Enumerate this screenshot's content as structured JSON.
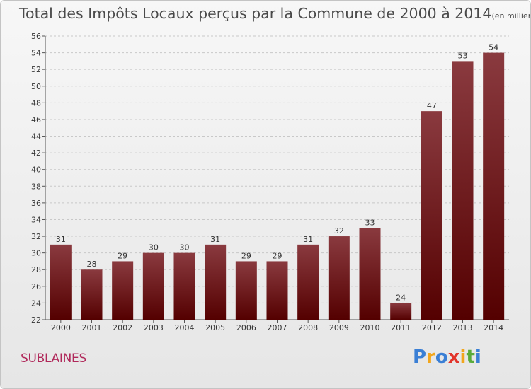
{
  "title": "Total des Impôts Locaux perçus par la Commune de 2000 à 2014",
  "unit": "(en milliers d'€)",
  "commune": "SUBLAINES",
  "logo": {
    "letters": [
      "P",
      "r",
      "o",
      "x",
      "i",
      "t",
      "i"
    ],
    "colors": [
      "#3a7fd5",
      "#f2a61c",
      "#3a7fd5",
      "#e2352b",
      "#f2a61c",
      "#5aab3a",
      "#3a7fd5"
    ]
  },
  "colors": {
    "bar_top": "#8a3a3f",
    "bar_bottom": "#540000",
    "grid": "#c8c8c8"
  },
  "chart_data": {
    "type": "bar",
    "categories": [
      "2000",
      "2001",
      "2002",
      "2003",
      "2004",
      "2005",
      "2006",
      "2007",
      "2008",
      "2009",
      "2010",
      "2011",
      "2012",
      "2013",
      "2014"
    ],
    "values": [
      31,
      28,
      29,
      30,
      30,
      31,
      29,
      29,
      31,
      32,
      33,
      24,
      47,
      53,
      54
    ],
    "ylim": [
      22,
      56
    ],
    "yticks": [
      22,
      24,
      26,
      28,
      30,
      32,
      34,
      36,
      38,
      40,
      42,
      44,
      46,
      48,
      50,
      52,
      54,
      56
    ],
    "grid": "horizontal dashed",
    "data_labels": true
  }
}
